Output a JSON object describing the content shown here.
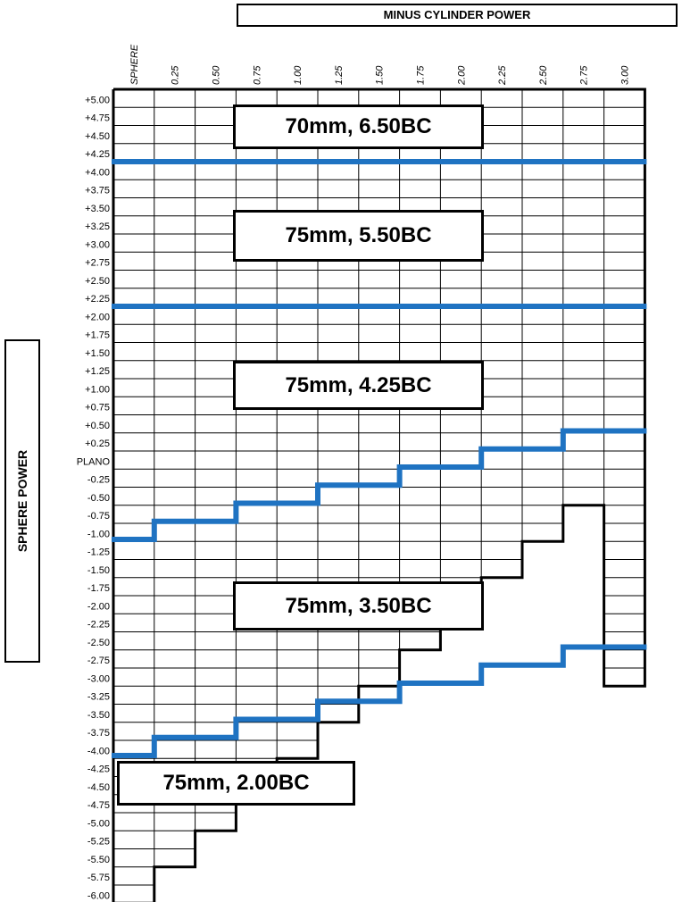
{
  "header": {
    "title": "MINUS CYLINDER POWER"
  },
  "sphere_axis_label": "SPHERE POWER",
  "column_labels": [
    "SPHERE",
    "0.25",
    "0.50",
    "0.75",
    "1.00",
    "1.25",
    "1.50",
    "1.75",
    "2.00",
    "2.25",
    "2.50",
    "2.75",
    "3.00"
  ],
  "row_labels": [
    "+5.00",
    "+4.75",
    "+4.50",
    "+4.25",
    "+4.00",
    "+3.75",
    "+3.50",
    "+3.25",
    "+3.00",
    "+2.75",
    "+2.50",
    "+2.25",
    "+2.00",
    "+1.75",
    "+1.50",
    "+1.25",
    "+1.00",
    "+0.75",
    "+0.50",
    "+0.25",
    "PLANO",
    "-0.25",
    "-0.50",
    "-0.75",
    "-1.00",
    "-1.25",
    "-1.50",
    "-1.75",
    "-2.00",
    "-2.25",
    "-2.50",
    "-2.75",
    "-3.00",
    "-3.25",
    "-3.50",
    "-3.75",
    "-4.00",
    "-4.25",
    "-4.50",
    "-4.75",
    "-5.00",
    "-5.25",
    "-5.50",
    "-5.75",
    "-6.00"
  ],
  "zones": [
    {
      "label": "70mm, 6.50BC"
    },
    {
      "label": "75mm, 5.50BC"
    },
    {
      "label": "75mm, 4.25BC"
    },
    {
      "label": "75mm, 3.50BC"
    },
    {
      "label": "75mm, 2.00BC"
    }
  ],
  "boundary_color": "#1f73c2",
  "grid_color": "#000000"
}
